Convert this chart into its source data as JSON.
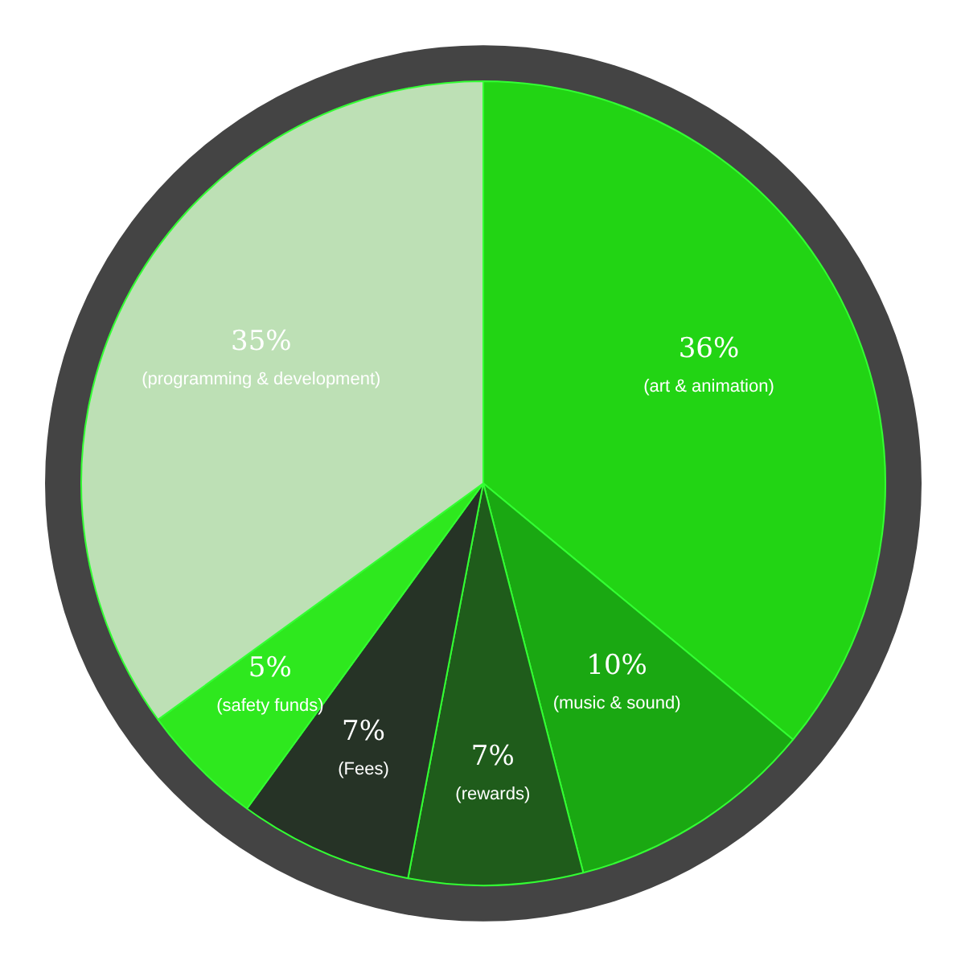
{
  "chart_data": {
    "type": "pie",
    "categories": [
      "(art & animation)",
      "(music & sound)",
      "(rewards)",
      "(Fees)",
      "(safety funds)",
      "(programming & development)"
    ],
    "values": [
      36,
      10,
      7,
      7,
      5,
      35
    ],
    "value_labels": [
      "36%",
      "10%",
      "7%",
      "7%",
      "5%",
      "35%"
    ],
    "colors": [
      "#22d414",
      "#1aa812",
      "#1f5c1b",
      "#263326",
      "#2ee81e",
      "#bde0b5"
    ]
  }
}
